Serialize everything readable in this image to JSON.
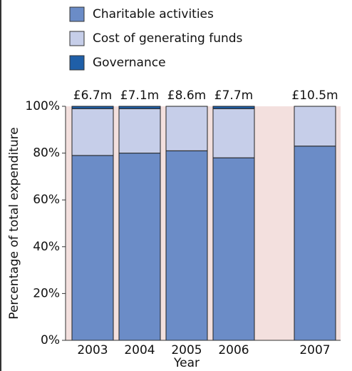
{
  "chart_data": {
    "type": "stacked_bar",
    "categories": [
      "2003",
      "2004",
      "2005",
      "2006",
      "2007"
    ],
    "series": [
      {
        "name": "Charitable activities",
        "color": "#6b8cc7",
        "values": [
          79,
          80,
          81,
          78,
          83
        ]
      },
      {
        "name": "Cost of generating funds",
        "color": "#c6cee9",
        "values": [
          20,
          19,
          19,
          21,
          17
        ]
      },
      {
        "name": "Governance",
        "color": "#1f5fa8",
        "values": [
          1,
          1,
          0,
          1,
          0
        ]
      }
    ],
    "annotations": [
      "£6.7m",
      "£7.1m",
      "£8.6m",
      "£7.7m",
      "£10.5m"
    ],
    "ylabel": "Percentage of total expenditure",
    "xlabel": "Year",
    "ylim": [
      0,
      100
    ],
    "yticks": [
      {
        "value": 0,
        "label": "0%"
      },
      {
        "value": 20,
        "label": "20%"
      },
      {
        "value": 40,
        "label": "40%"
      },
      {
        "value": 60,
        "label": "60%"
      },
      {
        "value": 80,
        "label": "80%"
      },
      {
        "value": 100,
        "label": "100%"
      }
    ],
    "background": "#f3e0de"
  }
}
